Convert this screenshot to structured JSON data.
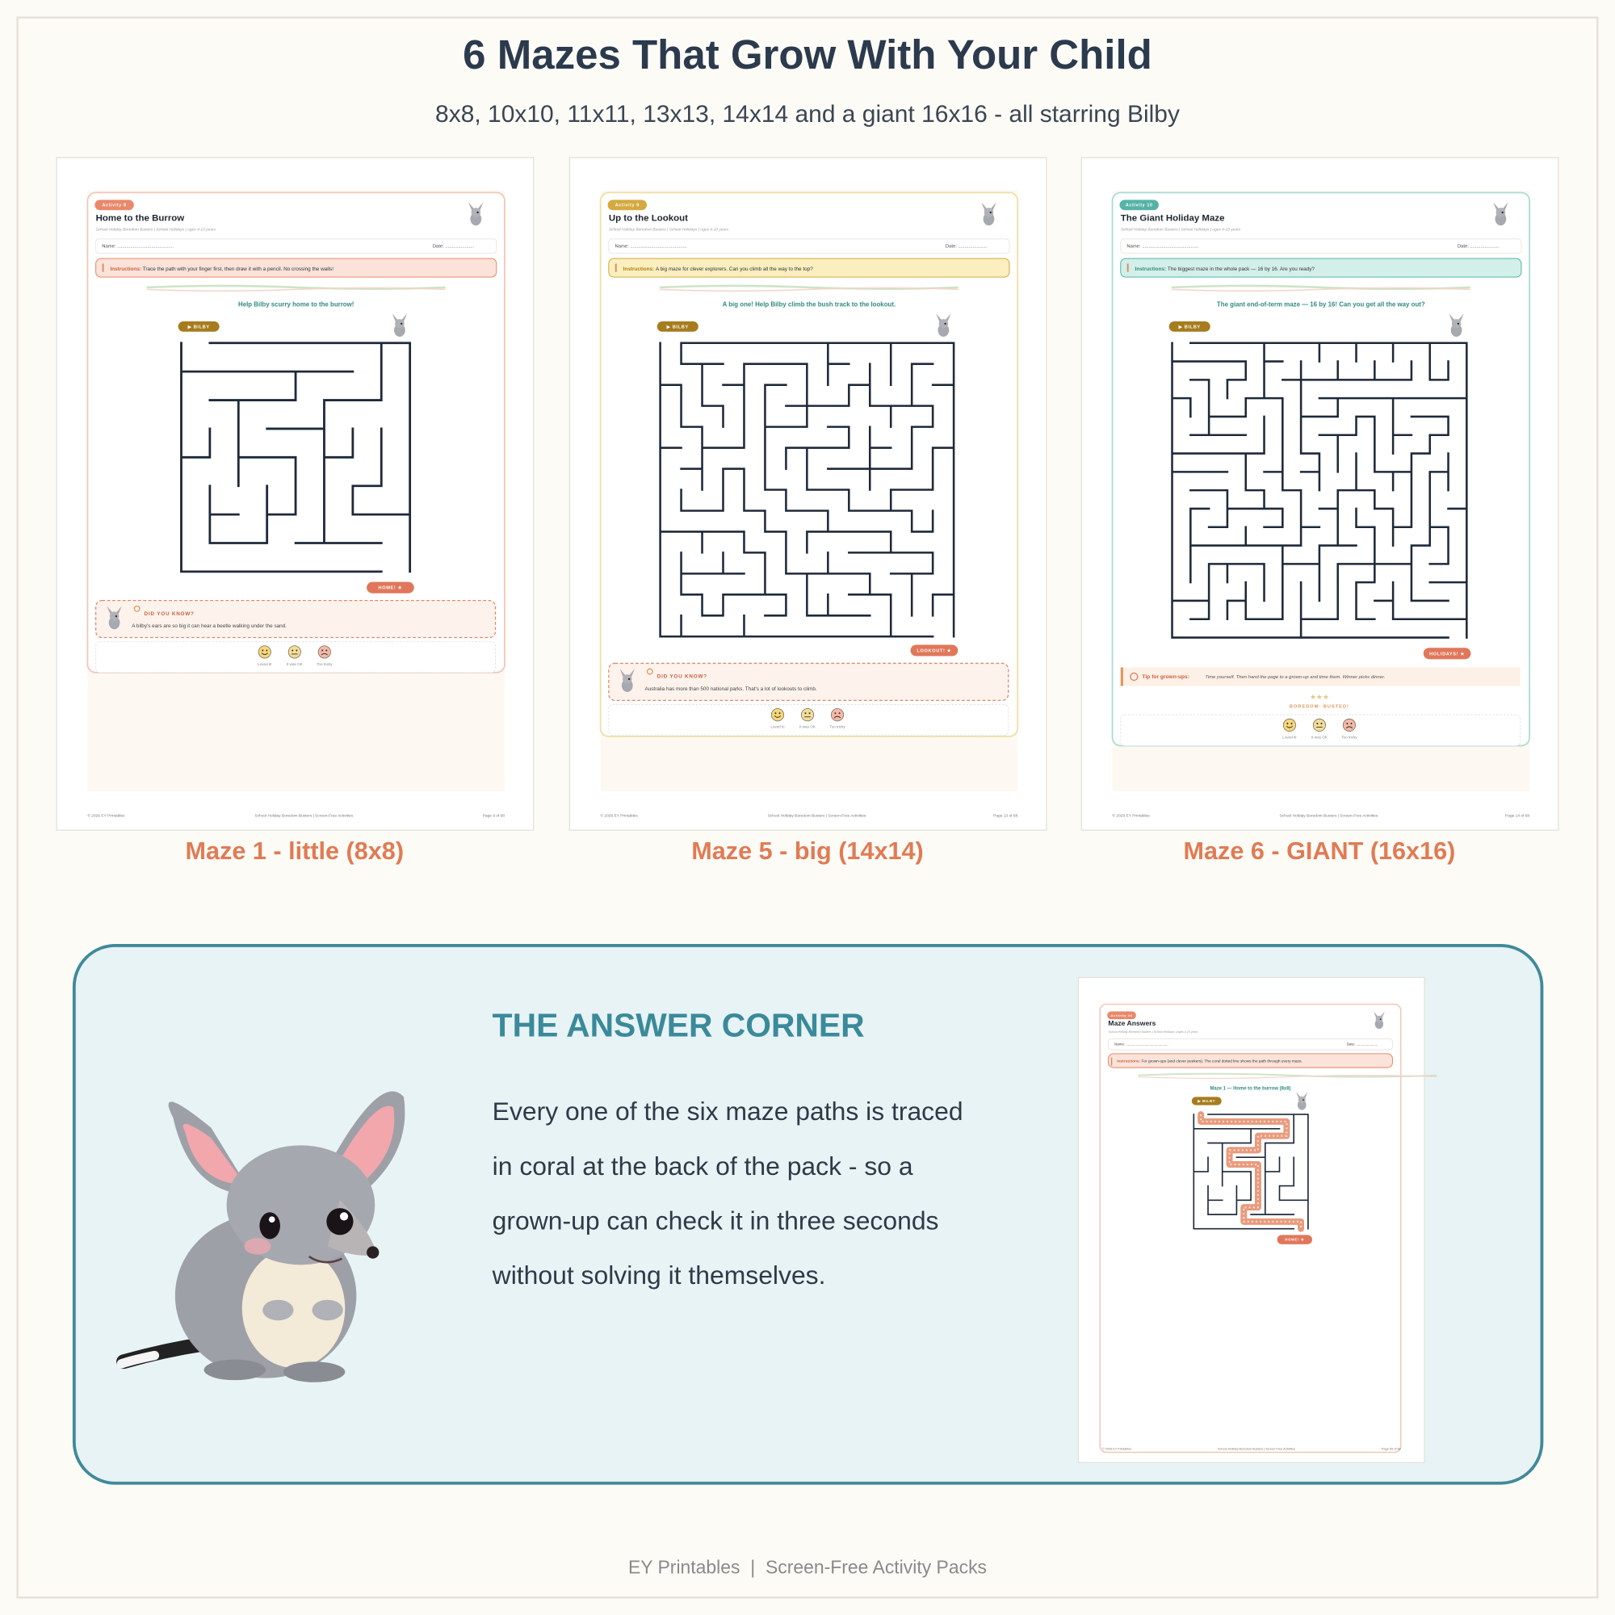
{
  "header": {
    "title": "6 Mazes That Grow With Your Child",
    "subtitle": "8x8, 10x10, 11x11, 13x13, 14x14 and a giant 16x16 - all starring Bilby"
  },
  "cards": [
    {
      "activity": "Activity 8",
      "title": "Home to the Burrow",
      "meta": "School Holiday Boredom Busters | School Holidays | Ages 4-10 years",
      "name_label": "Name: ...........................................",
      "date_label": "Date: ......................",
      "instructions_label": "Instructions:",
      "instructions": "Trace the path with your finger first, then draw it with a pencil. No crossing the walls!",
      "prompt": "Help Bilby scurry home to the burrow!",
      "start_tag": "▶ BILBY",
      "end_tag": "HOME! ★",
      "note_label": "DID YOU KNOW?",
      "note": "A bilby's ears are so big it can hear a beetle walking under the sand.",
      "faces": [
        "Loved it!",
        "It was OK",
        "Too tricky"
      ],
      "footer": {
        "left": "© 2026 EY Printables",
        "center": "School Holiday Boredom Busters | Screen-Free Activities",
        "right": "Page 9 of 68"
      },
      "caption": "Maze 1 - little (8x8)"
    },
    {
      "activity": "Activity 9",
      "title": "Up to the Lookout",
      "meta": "School Holiday Boredom Busters | School Holidays | Ages 4-10 years",
      "name_label": "Name: ...........................................",
      "date_label": "Date: ......................",
      "instructions_label": "Instructions:",
      "instructions": "A big maze for clever explorers. Can you climb all the way to the top?",
      "prompt": "A big one! Help Bilby climb the bush track to the lookout.",
      "start_tag": "▶ BILBY",
      "end_tag": "LOOKOUT! ★",
      "note_label": "DID YOU KNOW?",
      "note": "Australia has more than 500 national parks. That's a lot of lookouts to climb.",
      "faces": [
        "Loved it!",
        "It was OK",
        "Too tricky"
      ],
      "footer": {
        "left": "© 2026 EY Printables",
        "center": "School Holiday Boredom Busters | Screen-Free Activities",
        "right": "Page 13 of 68"
      },
      "caption": "Maze 5 - big (14x14)"
    },
    {
      "activity": "Activity 10",
      "title": "The Giant Holiday Maze",
      "meta": "School Holiday Boredom Busters | School Holidays | Ages 4-10 years",
      "name_label": "Name: ...........................................",
      "date_label": "Date: ......................",
      "instructions_label": "Instructions:",
      "instructions": "The biggest maze in the whole pack — 16 by 16. Are you ready?",
      "prompt": "The giant end-of-term maze — 16 by 16! Can you get all the way out?",
      "start_tag": "▶ BILBY",
      "end_tag": "HOLIDAYS! ★",
      "note_label": "Tip for grown-ups:",
      "note": "Time yourself. Then hand the page to a grown-up and time them. Winner picks dinner.",
      "rating": "★★★",
      "rating_label": "BOREDOM: BUSTED!",
      "faces": [
        "Loved it!",
        "It was OK",
        "Too tricky"
      ],
      "footer": {
        "left": "© 2026 EY Printables",
        "center": "School Holiday Boredom Busters | Screen-Free Activities",
        "right": "Page 14 of 68"
      },
      "caption": "Maze 6 - GIANT (16x16)"
    }
  ],
  "answer": {
    "heading": "THE ANSWER CORNER",
    "lines": [
      "Every one of the six maze paths is traced",
      "in coral at the back of the pack - so a",
      "grown-up can check it in three seconds",
      "without solving it themselves."
    ],
    "preview": {
      "activity": "Activity 44",
      "title": "Maze Answers",
      "meta": "School Holiday Boredom Busters | School Holidays | Ages 4-10 years",
      "name_label": "Name: ...........................................",
      "date_label": "Date: ......................",
      "instructions_label": "Instructions:",
      "instructions": "For grown-ups (and clever peekers). The coral dotted line shows the path through every maze.",
      "prompt": "Maze 1 — Home to the burrow (8x8)",
      "start_tag": "▶ BILBY",
      "end_tag": "HOME! ★",
      "footer": {
        "left": "© 2026 EY Printables",
        "center": "School Holiday Boredom Busters | Screen-Free Activities",
        "right": "Page 65 of 68"
      }
    }
  },
  "footer": "EY Printables  |  Screen-Free Activity Packs"
}
